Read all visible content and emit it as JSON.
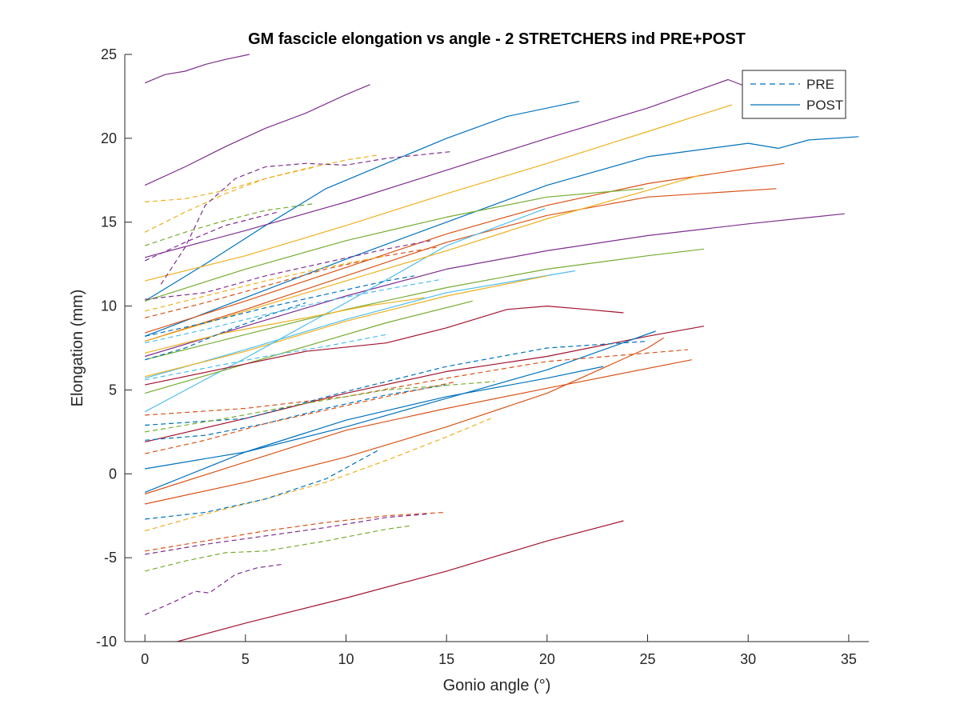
{
  "chart_data": {
    "type": "line",
    "title": "GM fascicle elongation vs angle - 2 STRETCHERS ind PRE+POST",
    "xlabel": "Gonio angle (°)",
    "ylabel": "Elongation (mm)",
    "xlim": [
      -1,
      36
    ],
    "ylim": [
      -10,
      25
    ],
    "xticks": [
      0,
      5,
      10,
      15,
      20,
      25,
      30,
      35
    ],
    "yticks": [
      -10,
      -5,
      0,
      5,
      10,
      15,
      20,
      25
    ],
    "grid": false,
    "legend_position": "top-right",
    "legend": [
      {
        "label": "PRE",
        "style": "dashed",
        "color": "#0072BD"
      },
      {
        "label": "POST",
        "style": "solid",
        "color": "#0072BD"
      }
    ],
    "colors": {
      "blue": "#0072BD",
      "orange": "#D95319",
      "yellow": "#EDB120",
      "purple": "#7E2F8E",
      "green": "#77AC30",
      "cyan": "#4DBEEE",
      "red": "#A2142F"
    },
    "series": [
      {
        "color": "purple",
        "style": "solid",
        "x": [
          0,
          1,
          2,
          3,
          4,
          5.2
        ],
        "y": [
          23.3,
          23.8,
          24.0,
          24.4,
          24.7,
          25.0
        ]
      },
      {
        "color": "purple",
        "style": "solid",
        "x": [
          0,
          2,
          4,
          6,
          8,
          10,
          11.2
        ],
        "y": [
          17.2,
          18.3,
          19.5,
          20.6,
          21.5,
          22.6,
          23.2
        ]
      },
      {
        "color": "blue",
        "style": "solid",
        "x": [
          0,
          3,
          6,
          9,
          12,
          15,
          18,
          21.6
        ],
        "y": [
          10.3,
          12.5,
          14.8,
          17.0,
          18.5,
          20.0,
          21.3,
          22.2
        ]
      },
      {
        "color": "purple",
        "style": "solid",
        "x": [
          0,
          5,
          10,
          15,
          20,
          25,
          29,
          30.5
        ],
        "y": [
          12.9,
          14.5,
          16.2,
          18.1,
          20.0,
          21.8,
          23.5,
          22.8
        ]
      },
      {
        "color": "yellow",
        "style": "solid",
        "x": [
          0,
          5,
          10,
          15,
          20,
          25,
          29.2
        ],
        "y": [
          11.5,
          13.0,
          14.8,
          16.7,
          18.5,
          20.4,
          22.0
        ]
      },
      {
        "color": "blue",
        "style": "solid",
        "x": [
          0,
          5,
          10,
          15,
          20,
          25,
          30,
          31.5,
          33,
          35.5
        ],
        "y": [
          8.2,
          10.5,
          12.8,
          15.0,
          17.2,
          18.9,
          19.7,
          19.4,
          19.9,
          20.1
        ]
      },
      {
        "color": "orange",
        "style": "solid",
        "x": [
          0,
          5,
          10,
          15,
          20,
          25,
          30,
          31.8
        ],
        "y": [
          8.4,
          10.3,
          12.3,
          14.3,
          16.0,
          17.3,
          18.2,
          18.5
        ]
      },
      {
        "color": "orange",
        "style": "solid",
        "x": [
          0,
          5,
          10,
          15,
          20,
          25,
          31.4
        ],
        "y": [
          7.9,
          9.8,
          11.8,
          13.8,
          15.4,
          16.5,
          17.0
        ]
      },
      {
        "color": "purple",
        "style": "solid",
        "x": [
          0,
          5,
          10,
          15,
          20,
          25,
          30,
          34.8
        ],
        "y": [
          7.0,
          8.8,
          10.6,
          12.2,
          13.3,
          14.2,
          14.9,
          15.5
        ]
      },
      {
        "color": "green",
        "style": "solid",
        "x": [
          0,
          5,
          10,
          15,
          20,
          25,
          27.8
        ],
        "y": [
          6.8,
          8.3,
          9.8,
          11.1,
          12.2,
          13.0,
          13.4
        ]
      },
      {
        "color": "cyan",
        "style": "solid",
        "x": [
          0,
          5,
          10,
          15,
          21.4
        ],
        "y": [
          5.7,
          7.4,
          9.2,
          10.8,
          12.1
        ]
      },
      {
        "color": "yellow",
        "style": "solid",
        "x": [
          0,
          5,
          10,
          15,
          20
        ],
        "y": [
          5.8,
          7.3,
          9.1,
          10.6,
          11.8
        ]
      },
      {
        "color": "cyan",
        "style": "solid",
        "x": [
          0,
          5,
          10,
          15,
          19.9
        ],
        "y": [
          3.7,
          6.9,
          10.2,
          13.6,
          15.8
        ]
      },
      {
        "color": "green",
        "style": "solid",
        "x": [
          0,
          5,
          10,
          15,
          20,
          24.8
        ],
        "y": [
          10.3,
          12.2,
          13.9,
          15.3,
          16.5,
          17.0
        ]
      },
      {
        "color": "yellow",
        "style": "solid",
        "x": [
          0,
          5,
          10,
          15,
          20,
          25,
          27.6
        ],
        "y": [
          7.9,
          9.7,
          11.5,
          13.3,
          15.2,
          16.9,
          17.8
        ]
      },
      {
        "color": "green",
        "style": "solid",
        "x": [
          0,
          4,
          8,
          12,
          16.3
        ],
        "y": [
          4.8,
          6.2,
          7.6,
          9.0,
          10.3
        ]
      },
      {
        "color": "red",
        "style": "solid",
        "x": [
          0,
          4,
          8,
          12,
          15,
          18,
          20,
          22,
          23.8
        ],
        "y": [
          5.3,
          6.3,
          7.3,
          7.8,
          8.7,
          9.8,
          10.0,
          9.8,
          9.6
        ]
      },
      {
        "color": "yellow",
        "style": "solid",
        "x": [
          0,
          4,
          8,
          11,
          13.9
        ],
        "y": [
          7.2,
          8.4,
          9.3,
          10.0,
          10.5
        ]
      },
      {
        "color": "red",
        "style": "solid",
        "x": [
          0,
          5,
          10,
          15,
          20,
          25,
          27.8
        ],
        "y": [
          1.9,
          3.3,
          4.8,
          6.1,
          7.0,
          8.2,
          8.8
        ]
      },
      {
        "color": "blue",
        "style": "solid",
        "x": [
          0,
          5,
          10,
          15,
          20,
          25.4
        ],
        "y": [
          0.3,
          1.3,
          2.8,
          4.5,
          6.2,
          8.5
        ]
      },
      {
        "color": "blue",
        "style": "solid",
        "x": [
          0,
          5,
          10,
          15,
          20,
          22.8
        ],
        "y": [
          -1.1,
          1.3,
          3.2,
          4.6,
          5.7,
          6.4
        ]
      },
      {
        "color": "orange",
        "style": "solid",
        "x": [
          0,
          5,
          10,
          15,
          20,
          27.2
        ],
        "y": [
          -1.2,
          0.7,
          2.6,
          3.9,
          5.1,
          6.8
        ]
      },
      {
        "color": "orange",
        "style": "solid",
        "x": [
          0,
          5,
          10,
          15,
          20,
          25,
          25.8
        ],
        "y": [
          -1.8,
          -0.5,
          1.0,
          2.8,
          4.8,
          7.5,
          8.1
        ]
      },
      {
        "color": "red",
        "style": "solid",
        "x": [
          1.6,
          5,
          10,
          15,
          20,
          23.8
        ],
        "y": [
          -10.0,
          -8.9,
          -7.4,
          -5.8,
          -4.0,
          -2.8
        ]
      },
      {
        "color": "orange",
        "style": "dashed",
        "x": [
          0,
          5,
          10,
          15,
          20,
          27
        ],
        "y": [
          3.5,
          3.9,
          4.6,
          5.7,
          6.7,
          7.4
        ]
      },
      {
        "color": "blue",
        "style": "dashed",
        "x": [
          0,
          5,
          10,
          15,
          20,
          25
        ],
        "y": [
          2.9,
          3.3,
          4.9,
          6.4,
          7.5,
          7.9
        ]
      },
      {
        "color": "blue",
        "style": "dashed",
        "x": [
          0,
          3,
          6,
          9,
          12,
          15
        ],
        "y": [
          2.0,
          2.3,
          3.0,
          3.9,
          4.7,
          5.3
        ]
      },
      {
        "color": "orange",
        "style": "dashed",
        "x": [
          0,
          3,
          6,
          9,
          12,
          15.5
        ],
        "y": [
          1.2,
          2.0,
          3.0,
          3.8,
          4.6,
          5.5
        ]
      },
      {
        "color": "green",
        "style": "dashed",
        "x": [
          0,
          4,
          8,
          12,
          17.4
        ],
        "y": [
          2.5,
          3.3,
          4.2,
          5.0,
          5.5
        ]
      },
      {
        "color": "yellow",
        "style": "dashed",
        "x": [
          0,
          3,
          6,
          9,
          12,
          15,
          17.2
        ],
        "y": [
          -3.4,
          -2.4,
          -1.5,
          -0.5,
          0.8,
          2.2,
          3.3
        ]
      },
      {
        "color": "blue",
        "style": "dashed",
        "x": [
          0,
          3,
          6,
          9,
          11.6
        ],
        "y": [
          -2.7,
          -2.3,
          -1.5,
          -0.3,
          1.4
        ]
      },
      {
        "color": "orange",
        "style": "dashed",
        "x": [
          0,
          3,
          6,
          9,
          12,
          14.9
        ],
        "y": [
          -4.6,
          -4.0,
          -3.4,
          -2.9,
          -2.5,
          -2.3
        ]
      },
      {
        "color": "purple",
        "style": "dashed",
        "x": [
          0,
          3,
          6,
          9,
          12,
          14
        ],
        "y": [
          -4.8,
          -4.2,
          -3.7,
          -3.2,
          -2.6,
          -2.4
        ]
      },
      {
        "color": "green",
        "style": "dashed",
        "x": [
          0,
          2,
          4,
          6,
          9,
          12,
          13.2
        ],
        "y": [
          -5.8,
          -5.2,
          -4.7,
          -4.6,
          -4.0,
          -3.3,
          -3.1
        ]
      },
      {
        "color": "purple",
        "style": "dashed",
        "x": [
          0,
          1.5,
          2.5,
          3.2,
          4.5,
          5.6,
          6.8
        ],
        "y": [
          -8.4,
          -7.6,
          -7.0,
          -7.1,
          -6.0,
          -5.6,
          -5.4
        ]
      },
      {
        "color": "yellow",
        "style": "dashed",
        "x": [
          0,
          2,
          4,
          6,
          8,
          10,
          11.6
        ],
        "y": [
          16.2,
          16.4,
          16.9,
          17.6,
          18.2,
          18.7,
          19.0
        ]
      },
      {
        "color": "yellow",
        "style": "dashed",
        "x": [
          0,
          2,
          4,
          6,
          8.5
        ],
        "y": [
          14.4,
          15.6,
          16.7,
          17.6,
          18.3
        ]
      },
      {
        "color": "purple",
        "style": "dashed",
        "x": [
          0.8,
          2,
          3,
          4.5,
          6,
          8,
          10,
          12,
          15.2
        ],
        "y": [
          11.3,
          13.5,
          16.0,
          17.6,
          18.3,
          18.5,
          18.4,
          18.8,
          19.2
        ]
      },
      {
        "color": "green",
        "style": "dashed",
        "x": [
          0,
          2,
          4,
          6,
          8.4
        ],
        "y": [
          13.6,
          14.4,
          15.1,
          15.7,
          16.1
        ]
      },
      {
        "color": "purple",
        "style": "dashed",
        "x": [
          0,
          2,
          4,
          6.6
        ],
        "y": [
          12.7,
          13.8,
          14.8,
          15.6
        ]
      },
      {
        "color": "purple",
        "style": "dashed",
        "x": [
          0,
          3,
          6,
          9,
          12,
          14.2
        ],
        "y": [
          10.4,
          10.8,
          11.8,
          12.6,
          13.4,
          13.9
        ]
      },
      {
        "color": "orange",
        "style": "dashed",
        "x": [
          0,
          3,
          6,
          9,
          12,
          14.5
        ],
        "y": [
          9.3,
          10.2,
          11.2,
          12.2,
          13.0,
          13.5
        ]
      },
      {
        "color": "yellow",
        "style": "dashed",
        "x": [
          0,
          3,
          6,
          9,
          12
        ],
        "y": [
          9.7,
          10.6,
          11.5,
          12.3,
          13.0
        ]
      },
      {
        "color": "blue",
        "style": "dashed",
        "x": [
          0,
          3,
          6,
          9,
          12,
          13.4
        ],
        "y": [
          8.2,
          9.0,
          9.9,
          10.7,
          11.5,
          11.8
        ]
      },
      {
        "color": "cyan",
        "style": "dashed",
        "x": [
          0,
          3,
          6,
          9,
          12,
          14.8
        ],
        "y": [
          7.8,
          8.6,
          9.5,
          10.3,
          11.0,
          11.6
        ]
      },
      {
        "color": "blue",
        "style": "dashed",
        "x": [
          0,
          2,
          4,
          6,
          8
        ],
        "y": [
          6.8,
          7.5,
          8.5,
          9.4,
          10.2
        ]
      },
      {
        "color": "cyan",
        "style": "dashed",
        "x": [
          0,
          3,
          6,
          9,
          12
        ],
        "y": [
          5.6,
          6.3,
          7.0,
          7.6,
          8.3
        ]
      }
    ]
  }
}
